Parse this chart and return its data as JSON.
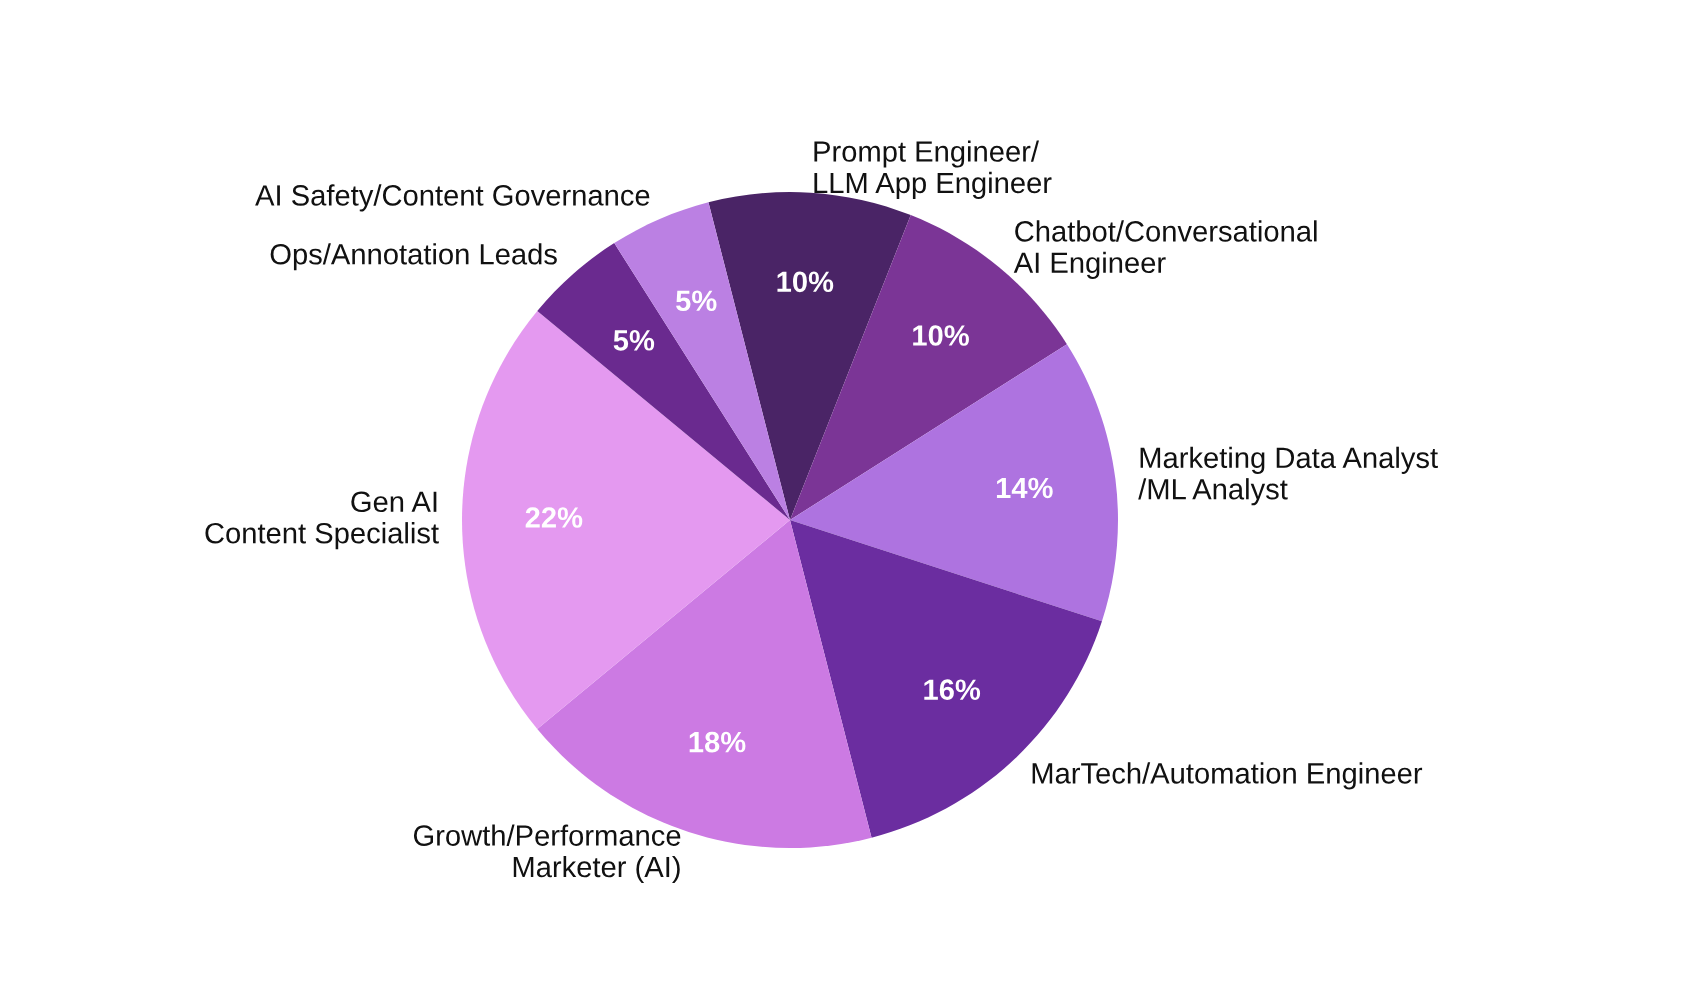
{
  "chart_data": {
    "type": "pie",
    "categories": [
      "Prompt Engineer/\nLLM App Engineer",
      "Chatbot/Conversational\nAI Engineer",
      "Marketing Data Analyst\n/ML Analyst",
      "MarTech/Automation Engineer",
      "Growth/Performance\nMarketer (AI)",
      "Gen AI\nContent Specialist",
      "Ops/Annotation Leads",
      "AI Safety/Content Governance"
    ],
    "values": [
      10,
      10,
      14,
      16,
      18,
      22,
      5,
      5
    ],
    "value_labels": [
      "10%",
      "10%",
      "14%",
      "16%",
      "18%",
      "22%",
      "5%",
      "5%"
    ],
    "colors": [
      "#4a2466",
      "#7b3596",
      "#ae73e0",
      "#6b2da0",
      "#cc7ae3",
      "#e499f0",
      "#6a2a8f",
      "#bb80e3"
    ]
  }
}
